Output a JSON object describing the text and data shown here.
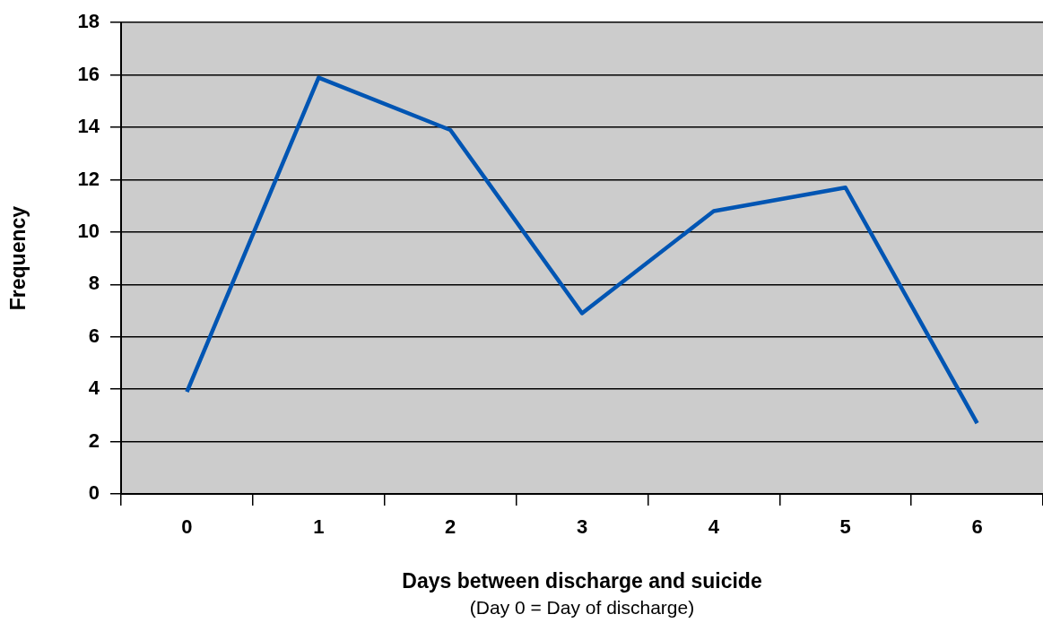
{
  "chart_data": {
    "type": "line",
    "xlabel": "Days between discharge and suicide",
    "ylabel": "Frequency",
    "annotations": [
      "(Day 0 = Day of discharge)"
    ],
    "categories": [
      "0",
      "1",
      "2",
      "3",
      "4",
      "5",
      "6"
    ],
    "series": [
      {
        "color": "#0055b3",
        "values": [
          3.9,
          15.9,
          13.9,
          6.9,
          10.8,
          11.7,
          2.7
        ]
      }
    ],
    "ylim": [
      0,
      18
    ],
    "yticks": [
      0,
      2,
      4,
      6,
      8,
      10,
      12,
      14,
      16,
      18
    ],
    "grid": "y",
    "marker": "none",
    "line_style": "solid"
  }
}
